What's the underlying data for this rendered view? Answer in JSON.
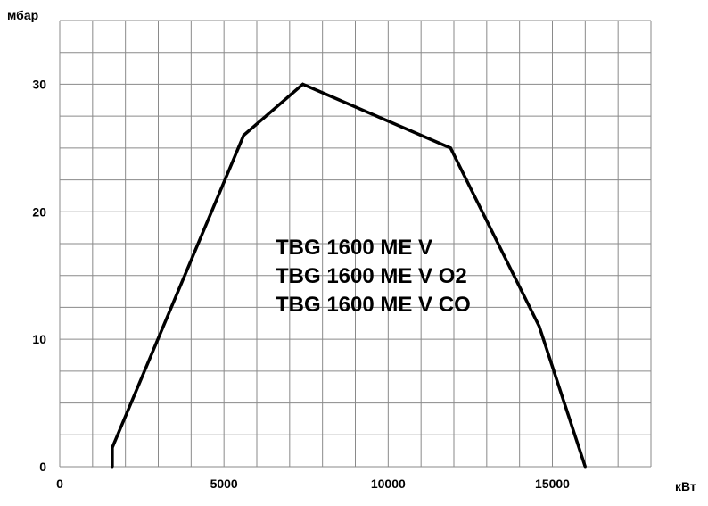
{
  "chart_data": {
    "type": "line",
    "title": "",
    "xlabel": "кВт",
    "ylabel": "мбар",
    "xlim": [
      0,
      18000
    ],
    "ylim": [
      0,
      35
    ],
    "x_ticks": [
      0,
      5000,
      10000,
      15000
    ],
    "y_ticks": [
      0,
      10,
      20,
      30
    ],
    "grid": true,
    "grid_minor_x_step": 1000,
    "grid_minor_y_step": 2.5,
    "annotation_lines": [
      "TBG 1600 ME  V",
      "TBG 1600 ME  V O2",
      "TBG 1600 ME  V CO"
    ],
    "series": [
      {
        "x": [
          1600,
          1600,
          5600,
          7400,
          11900,
          14600,
          16000
        ],
        "y": [
          0,
          1.5,
          26,
          30,
          25,
          11,
          0
        ]
      }
    ]
  }
}
